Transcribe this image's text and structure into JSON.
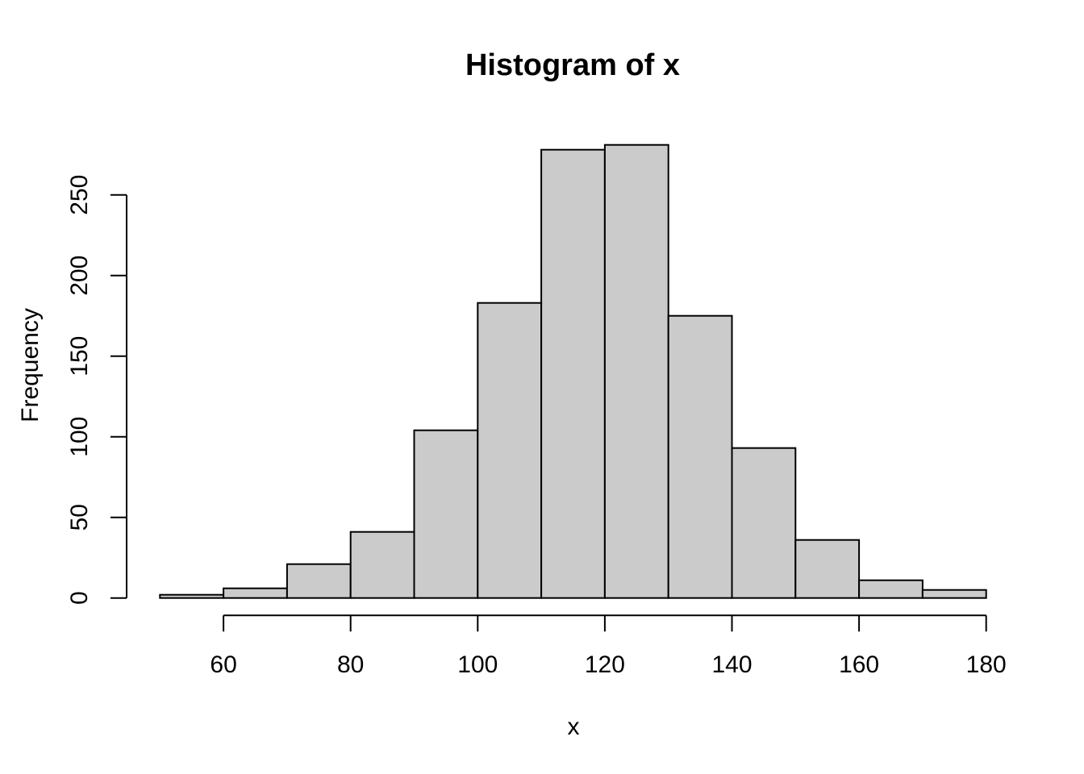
{
  "chart_data": {
    "type": "bar",
    "subtype": "histogram",
    "title": "Histogram of x",
    "xlabel": "x",
    "ylabel": "Frequency",
    "bin_start": 50,
    "bin_width": 10,
    "categories": [
      "50-60",
      "60-70",
      "70-80",
      "80-90",
      "90-100",
      "100-110",
      "110-120",
      "120-130",
      "130-140",
      "140-150",
      "150-160",
      "160-170",
      "170-180"
    ],
    "values": [
      2,
      6,
      21,
      41,
      104,
      183,
      278,
      281,
      175,
      93,
      36,
      11,
      5
    ],
    "x_ticks": [
      60,
      80,
      100,
      120,
      140,
      160,
      180
    ],
    "y_ticks": [
      0,
      50,
      100,
      150,
      200,
      250
    ],
    "xlim": [
      50,
      180
    ],
    "ylim": [
      0,
      250
    ],
    "grid": "off",
    "legend": "none",
    "colors": {
      "bar_fill": "#CBCBCB",
      "bar_stroke": "#000000",
      "axis": "#000000",
      "text": "#000000",
      "background": "#FFFFFF"
    }
  }
}
